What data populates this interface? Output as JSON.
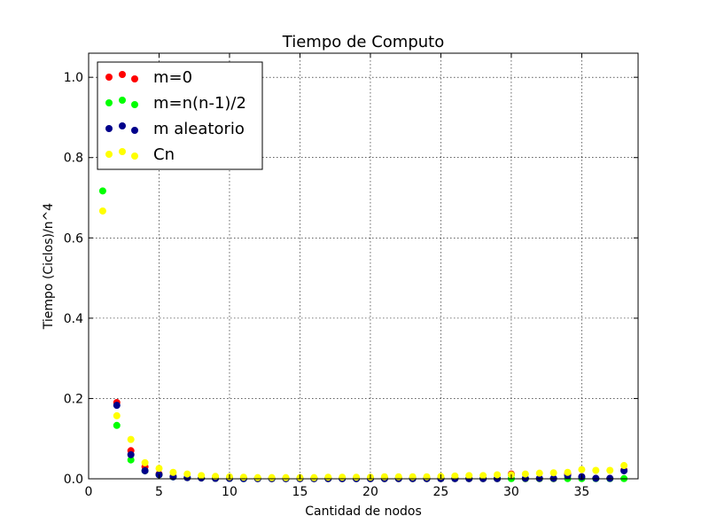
{
  "chart_data": {
    "type": "scatter",
    "title": "Tiempo de Computo",
    "xlabel": "Cantidad de nodos",
    "ylabel": "Tiempo (Ciclos)/n^4",
    "xlim": [
      0,
      39
    ],
    "ylim": [
      0,
      1.06
    ],
    "xticks": [
      0,
      5,
      10,
      15,
      20,
      25,
      30,
      35
    ],
    "xtick_labels": [
      "0",
      "5",
      "10",
      "15",
      "20",
      "25",
      "30",
      "35"
    ],
    "yticks": [
      0.0,
      0.2,
      0.4,
      0.6,
      0.8,
      1.0
    ],
    "ytick_labels": [
      "0.0",
      "0.2",
      "0.4",
      "0.6",
      "0.8",
      "1.0"
    ],
    "grid": true,
    "legend_position": "top-left",
    "series": [
      {
        "name": "m=0",
        "color": "#ff0000",
        "x": [
          2,
          3,
          4,
          5,
          6,
          7,
          8,
          9,
          10,
          11,
          12,
          13,
          14,
          15,
          16,
          17,
          18,
          19,
          20,
          21,
          22,
          23,
          24,
          25,
          26,
          27,
          28,
          29,
          30,
          31,
          32,
          33,
          34,
          35,
          36,
          37,
          38
        ],
        "y": [
          0.19,
          0.07,
          0.03,
          0.012,
          0.006,
          0.003,
          0.002,
          0.001,
          0.001,
          0.001,
          0.0005,
          0.0005,
          0.0005,
          0.0005,
          0.0005,
          0.0005,
          0.0005,
          0.0005,
          0.0005,
          0.0005,
          0.0005,
          0.0005,
          0.0005,
          0.0005,
          0.0005,
          0.0005,
          0.0005,
          0.0005,
          0.012,
          0.0005,
          0.0005,
          0.0005,
          0.012,
          0.005,
          0.001,
          0.001,
          0.022
        ]
      },
      {
        "name": "m=n(n-1)/2",
        "color": "#00ff00",
        "x": [
          1,
          2,
          3,
          4,
          5,
          6,
          7,
          8,
          9,
          10,
          11,
          12,
          13,
          14,
          15,
          16,
          17,
          18,
          19,
          20,
          21,
          22,
          23,
          24,
          25,
          26,
          27,
          28,
          29,
          30,
          31,
          32,
          33,
          34,
          35,
          36,
          37,
          38
        ],
        "y": [
          0.717,
          0.133,
          0.047,
          0.02,
          0.01,
          0.005,
          0.003,
          0.002,
          0.001,
          0.001,
          0.0005,
          0.0005,
          0.0005,
          0.0005,
          0.0005,
          0.0005,
          0.0005,
          0.0005,
          0.0005,
          0.0005,
          0.0005,
          0.0005,
          0.0005,
          0.0005,
          0.0005,
          0.0005,
          0.0005,
          0.0005,
          0.0005,
          0.0005,
          0.0005,
          0.0005,
          0.0005,
          0.0005,
          0.0005,
          0.0005,
          0.0005,
          0.0005
        ]
      },
      {
        "name": "m aleatorio",
        "color": "#00008b",
        "x": [
          2,
          3,
          4,
          5,
          6,
          7,
          8,
          9,
          10,
          11,
          12,
          13,
          14,
          15,
          16,
          17,
          18,
          19,
          20,
          21,
          22,
          23,
          24,
          25,
          26,
          27,
          28,
          29,
          30,
          31,
          32,
          33,
          34,
          35,
          36,
          37,
          38
        ],
        "y": [
          0.183,
          0.06,
          0.02,
          0.01,
          0.005,
          0.003,
          0.002,
          0.001,
          0.001,
          0.0005,
          0.0005,
          0.0005,
          0.0005,
          0.0005,
          0.0005,
          0.0005,
          0.0005,
          0.0005,
          0.0005,
          0.0005,
          0.0005,
          0.0005,
          0.0005,
          0.0005,
          0.0005,
          0.0005,
          0.0005,
          0.0005,
          0.01,
          0.001,
          0.001,
          0.001,
          0.008,
          0.005,
          0.001,
          0.001,
          0.02
        ]
      },
      {
        "name": "Cn",
        "color": "#ffff00",
        "x": [
          1,
          2,
          3,
          4,
          5,
          6,
          7,
          8,
          9,
          10,
          11,
          12,
          13,
          14,
          15,
          16,
          17,
          18,
          19,
          20,
          21,
          22,
          23,
          24,
          25,
          26,
          27,
          28,
          29,
          30,
          31,
          32,
          33,
          34,
          35,
          36,
          37,
          38
        ],
        "y": [
          0.667,
          0.157,
          0.098,
          0.04,
          0.026,
          0.016,
          0.012,
          0.008,
          0.006,
          0.005,
          0.004,
          0.003,
          0.003,
          0.003,
          0.003,
          0.003,
          0.004,
          0.004,
          0.004,
          0.004,
          0.005,
          0.005,
          0.005,
          0.005,
          0.006,
          0.007,
          0.008,
          0.008,
          0.01,
          0.01,
          0.012,
          0.014,
          0.015,
          0.016,
          0.023,
          0.021,
          0.021,
          0.033
        ]
      }
    ]
  }
}
